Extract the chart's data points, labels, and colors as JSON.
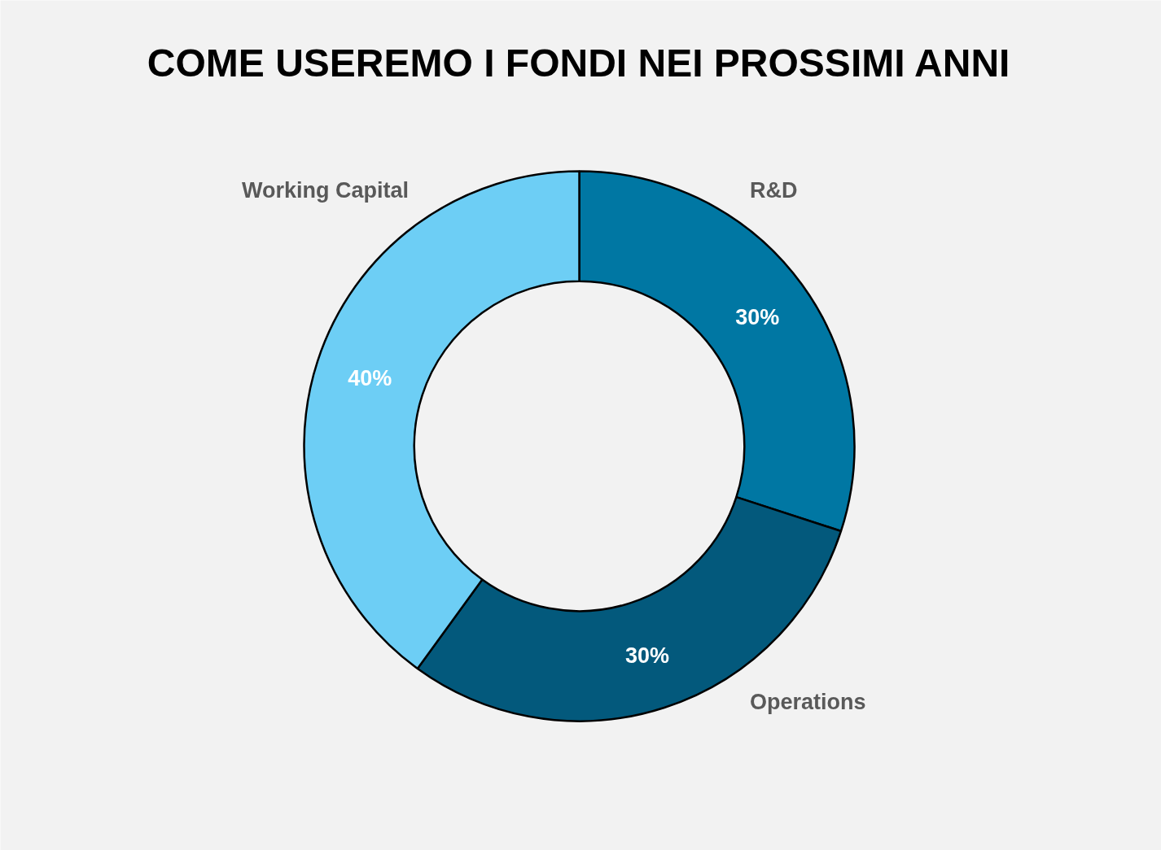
{
  "chart_data": {
    "type": "donut",
    "title": "COME USEREMO I FONDI NEI PROSSIMI ANNI",
    "categories": [
      "R&D",
      "Operations",
      "Working Capital"
    ],
    "values": [
      30,
      30,
      40
    ],
    "colors": [
      "#0077a3",
      "#03597c",
      "#6dcef5"
    ],
    "value_labels": [
      "30%",
      "30%",
      "40%"
    ]
  }
}
